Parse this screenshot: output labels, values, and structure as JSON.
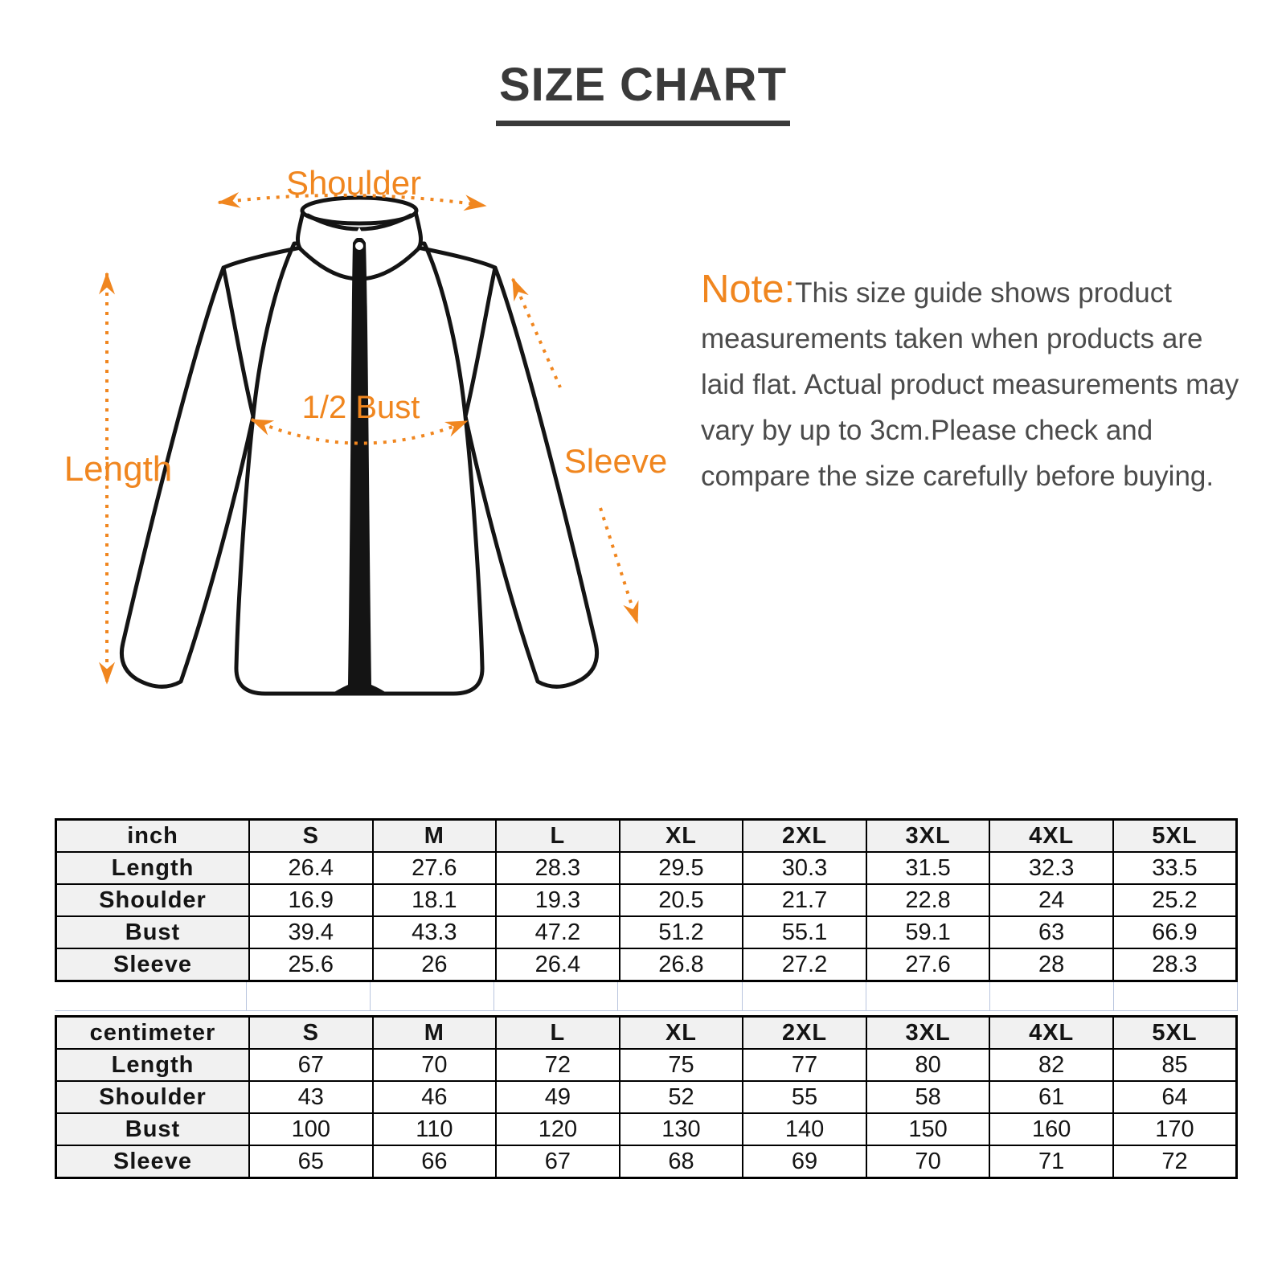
{
  "title": "SIZE CHART",
  "diagram": {
    "labels": {
      "shoulder": "Shoulder",
      "length": "Length",
      "half_bust": "1/2 Bust",
      "sleeve": "Sleeve"
    }
  },
  "note": {
    "prefix": "Note:",
    "body": "This size guide shows product measurements taken when products are laid flat. Actual product measurements may vary by up to 3cm.Please check and compare the size carefully before buying."
  },
  "colors": {
    "accent_orange": "#F0861F",
    "title_gray": "#3A3A3A",
    "note_gray": "#4B4B4B",
    "table_border": "#000000",
    "table_header_bg": "#F1F1F1",
    "spacer_grid_blue": "#B9C5DE"
  },
  "size_tables": [
    {
      "unit": "inch",
      "columns": [
        "S",
        "M",
        "L",
        "XL",
        "2XL",
        "3XL",
        "4XL",
        "5XL"
      ],
      "rows": [
        {
          "label": "Length",
          "values": [
            "26.4",
            "27.6",
            "28.3",
            "29.5",
            "30.3",
            "31.5",
            "32.3",
            "33.5"
          ]
        },
        {
          "label": "Shoulder",
          "values": [
            "16.9",
            "18.1",
            "19.3",
            "20.5",
            "21.7",
            "22.8",
            "24",
            "25.2"
          ]
        },
        {
          "label": "Bust",
          "values": [
            "39.4",
            "43.3",
            "47.2",
            "51.2",
            "55.1",
            "59.1",
            "63",
            "66.9"
          ]
        },
        {
          "label": "Sleeve",
          "values": [
            "25.6",
            "26",
            "26.4",
            "26.8",
            "27.2",
            "27.6",
            "28",
            "28.3"
          ]
        }
      ]
    },
    {
      "unit": "centimeter",
      "columns": [
        "S",
        "M",
        "L",
        "XL",
        "2XL",
        "3XL",
        "4XL",
        "5XL"
      ],
      "rows": [
        {
          "label": "Length",
          "values": [
            "67",
            "70",
            "72",
            "75",
            "77",
            "80",
            "82",
            "85"
          ]
        },
        {
          "label": "Shoulder",
          "values": [
            "43",
            "46",
            "49",
            "52",
            "55",
            "58",
            "61",
            "64"
          ]
        },
        {
          "label": "Bust",
          "values": [
            "100",
            "110",
            "120",
            "130",
            "140",
            "150",
            "160",
            "170"
          ]
        },
        {
          "label": "Sleeve",
          "values": [
            "65",
            "66",
            "67",
            "68",
            "69",
            "70",
            "71",
            "72"
          ]
        }
      ]
    }
  ]
}
